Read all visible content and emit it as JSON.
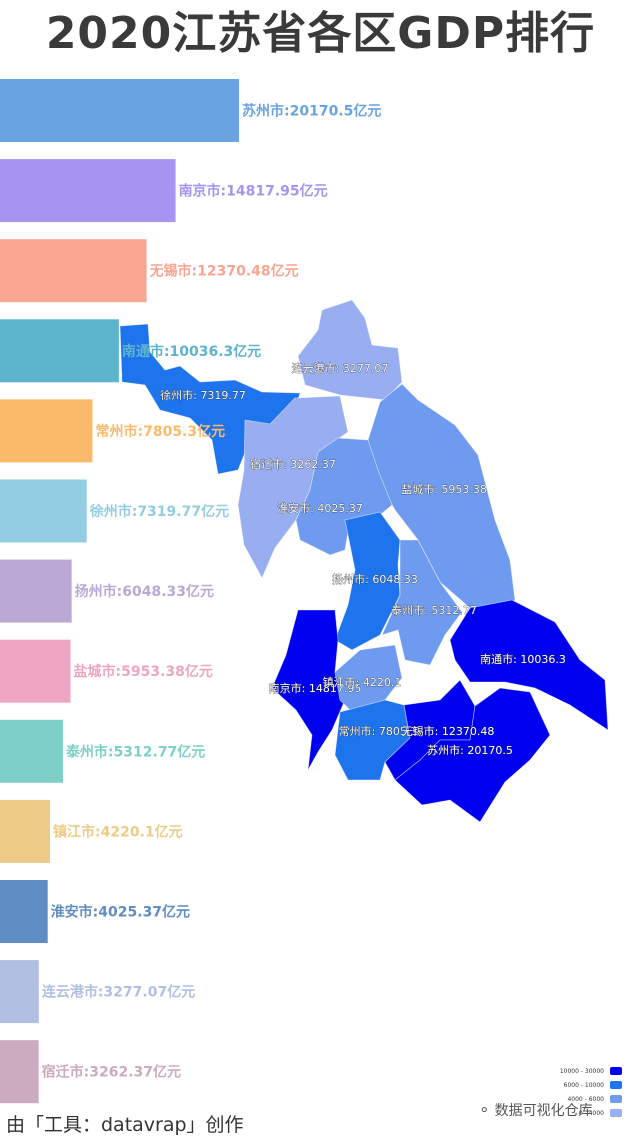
{
  "title": "2020江苏省各区GDP排行",
  "footer": "由「工具：datavrap」创作",
  "watermark": {
    "text": "数据可视化仓库",
    "icon": "wechat-icon"
  },
  "chart_data": [
    {
      "type": "bar",
      "orientation": "horizontal",
      "label_suffix": "亿元",
      "categories": [
        "苏州市",
        "南京市",
        "无锡市",
        "南通市",
        "常州市",
        "徐州市",
        "扬州市",
        "盐城市",
        "泰州市",
        "镇江市",
        "淮安市",
        "连云港市",
        "宿迁市"
      ],
      "values": [
        20170.5,
        14817.95,
        12370.48,
        10036.3,
        7805.3,
        7319.77,
        6048.33,
        5953.38,
        5312.77,
        4220.1,
        4025.37,
        3277.07,
        3262.37
      ],
      "value_labels": [
        "20170.5",
        "14817.95",
        "12370.48",
        "10036.3",
        "7805.3",
        "7319.77",
        "6048.33",
        "5953.38",
        "5312.77",
        "4220.1",
        "4025.37",
        "3277.07",
        "3262.37"
      ],
      "colors": [
        "#6aa4e0",
        "#a694f0",
        "#f8a592",
        "#5cb4cd",
        "#fbb96a",
        "#93cde3",
        "#bba8d4",
        "#eea6c2",
        "#7dd0c9",
        "#eecb86",
        "#5f8dc1",
        "#b1c0e2",
        "#ccaabf"
      ]
    },
    {
      "type": "map",
      "region": "江苏省",
      "map_labels": [
        {
          "name": "连云港市",
          "value": "3277.07"
        },
        {
          "name": "徐州市",
          "value": "7319.77"
        },
        {
          "name": "宿迁市",
          "value": "3262.37"
        },
        {
          "name": "盐城市",
          "value": "5953.38"
        },
        {
          "name": "淮安市",
          "value": "4025.37"
        },
        {
          "name": "扬州市",
          "value": "6048.33"
        },
        {
          "name": "泰州市",
          "value": "5312.77"
        },
        {
          "name": "南通市",
          "value": "10036.3"
        },
        {
          "name": "南京市",
          "value": "14817.95"
        },
        {
          "name": "镇江市",
          "value": "4220.1"
        },
        {
          "name": "常州市",
          "value": "7805.3"
        },
        {
          "name": "无锡市",
          "value": "12370.48"
        },
        {
          "name": "苏州市",
          "value": "20170.5"
        }
      ],
      "legend": [
        {
          "label": "10000 - 30000",
          "color": "#0000f0"
        },
        {
          "label": "6000 - 10000",
          "color": "#1e74ec"
        },
        {
          "label": "4000 - 6000",
          "color": "#6e9bf0"
        },
        {
          "label": "0 - 4000",
          "color": "#98aef0"
        }
      ]
    }
  ]
}
